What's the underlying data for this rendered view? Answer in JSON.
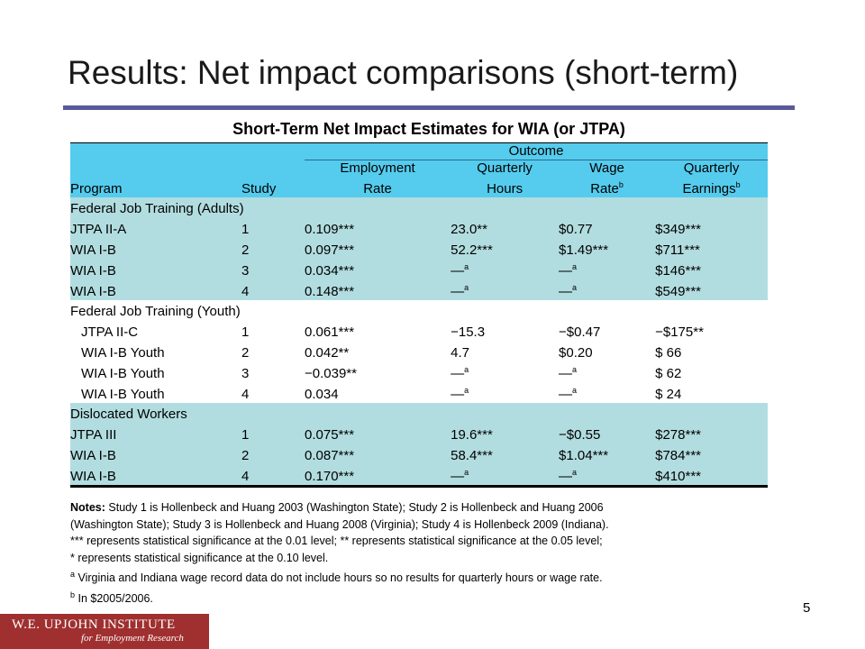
{
  "title": "Results: Net impact comparisons (short-term)",
  "table_title": "Short-Term Net Impact Estimates for WIA (or JTPA)",
  "headers": {
    "outcome": "Outcome",
    "program": "Program",
    "study": "Study",
    "emp_1": "Employment",
    "emp_2": "Rate",
    "qh_1": "Quarterly",
    "qh_2": "Hours",
    "wage_1": "Wage",
    "wage_2": "Rate",
    "wage_sup": "b",
    "earn_1": "Quarterly",
    "earn_2": "Earnings",
    "earn_sup": "b"
  },
  "groups": {
    "adults": "Federal Job Training (Adults)",
    "youth": "Federal Job Training (Youth)",
    "dislocated": "Dislocated Workers"
  },
  "adult_rows": [
    {
      "program": "JTPA II-A",
      "study": "1",
      "emp": "0.109***",
      "qh": "23.0**",
      "qh_sup": "",
      "wage": "$0.77",
      "wage_sup": "",
      "earn": "$349***"
    },
    {
      "program": "WIA I-B",
      "study": "2",
      "emp": "0.097***",
      "qh": "52.2***",
      "qh_sup": "",
      "wage": "$1.49***",
      "wage_sup": "",
      "earn": "$711***"
    },
    {
      "program": "WIA I-B",
      "study": "3",
      "emp": "0.034***",
      "qh": "—",
      "qh_sup": "a",
      "wage": "—",
      "wage_sup": "a",
      "earn": "$146***"
    },
    {
      "program": "WIA I-B",
      "study": "4",
      "emp": "0.148***",
      "qh": "—",
      "qh_sup": "a",
      "wage": "—",
      "wage_sup": "a",
      "earn": "$549***"
    }
  ],
  "youth_rows": [
    {
      "program": "JTPA II-C",
      "study": "1",
      "emp": "0.061***",
      "qh": "−15.3",
      "qh_sup": "",
      "wage": "−$0.47",
      "wage_sup": "",
      "earn": "−$175**"
    },
    {
      "program": "WIA I-B Youth",
      "study": "2",
      "emp": "0.042**",
      "qh": "4.7",
      "qh_sup": "",
      "wage": "$0.20",
      "wage_sup": "",
      "earn": "$ 66"
    },
    {
      "program": "WIA I-B Youth",
      "study": "3",
      "emp": "−0.039**",
      "qh": "—",
      "qh_sup": "a",
      "wage": "—",
      "wage_sup": "a",
      "earn": "$ 62"
    },
    {
      "program": "WIA I-B Youth",
      "study": "4",
      "emp": "0.034",
      "qh": "—",
      "qh_sup": "a",
      "wage": "—",
      "wage_sup": "a",
      "earn": "$ 24"
    }
  ],
  "dislocated_rows": [
    {
      "program": "JTPA III",
      "study": "1",
      "emp": "0.075***",
      "qh": "19.6***",
      "qh_sup": "",
      "wage": "−$0.55",
      "wage_sup": "",
      "earn": "$278***"
    },
    {
      "program": "WIA I-B",
      "study": "2",
      "emp": "0.087***",
      "qh": "58.4***",
      "qh_sup": "",
      "wage": "$1.04***",
      "wage_sup": "",
      "earn": "$784***"
    },
    {
      "program": "WIA I-B",
      "study": "4",
      "emp": "0.170***",
      "qh": "—",
      "qh_sup": "a",
      "wage": "—",
      "wage_sup": "a",
      "earn": "$410***"
    }
  ],
  "notes": {
    "label": "Notes:",
    "line1": " Study 1 is Hollenbeck and Huang 2003 (Washington State); Study 2 is Hollenbeck and Huang 2006",
    "line2": "(Washington State); Study 3 is Hollenbeck and Huang 2008 (Virginia); Study 4 is Hollenbeck 2009 (Indiana).",
    "line3": "*** represents statistical significance at the 0.01 level; ** represents statistical significance at the 0.05 level;",
    "line4": "* represents statistical significance at the 0.10 level.",
    "line5_sup": "a",
    "line5": "  Virginia and Indiana wage record data do not include hours so no results for quarterly hours or wage rate.",
    "line6_sup": "b",
    "line6": " In $2005/2006."
  },
  "page_number": "5",
  "logo": {
    "main": "W.E. UPJOHN INSTITUTE",
    "sub": "for Employment Research"
  }
}
